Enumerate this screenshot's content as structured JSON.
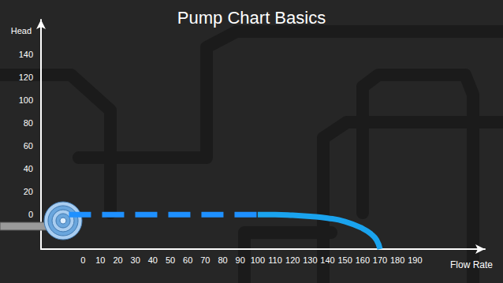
{
  "chart_data": {
    "type": "line",
    "title": "Pump Chart Basics",
    "xlabel": "Flow Rate",
    "ylabel": "Head",
    "xlim": [
      -24,
      230
    ],
    "ylim": [
      -30,
      170
    ],
    "xticks": [
      0,
      10,
      20,
      30,
      40,
      50,
      60,
      70,
      80,
      90,
      100,
      110,
      120,
      130,
      140,
      150,
      160,
      170,
      180,
      190
    ],
    "yticks": [
      0,
      20,
      40,
      60,
      80,
      100,
      120,
      140
    ],
    "grid": false,
    "series": [
      {
        "x": [
          -8,
          100
        ],
        "values": [
          0,
          0
        ],
        "color": "#1e90ff",
        "line_style": "dashed"
      },
      {
        "x": [
          100,
          110,
          120,
          130,
          140,
          150,
          160,
          165,
          168,
          170
        ],
        "values": [
          0,
          0,
          -0.5,
          -1.5,
          -3,
          -6,
          -12,
          -17,
          -22,
          -30
        ],
        "color": "#1aa3ee",
        "line_style": "solid"
      }
    ]
  }
}
